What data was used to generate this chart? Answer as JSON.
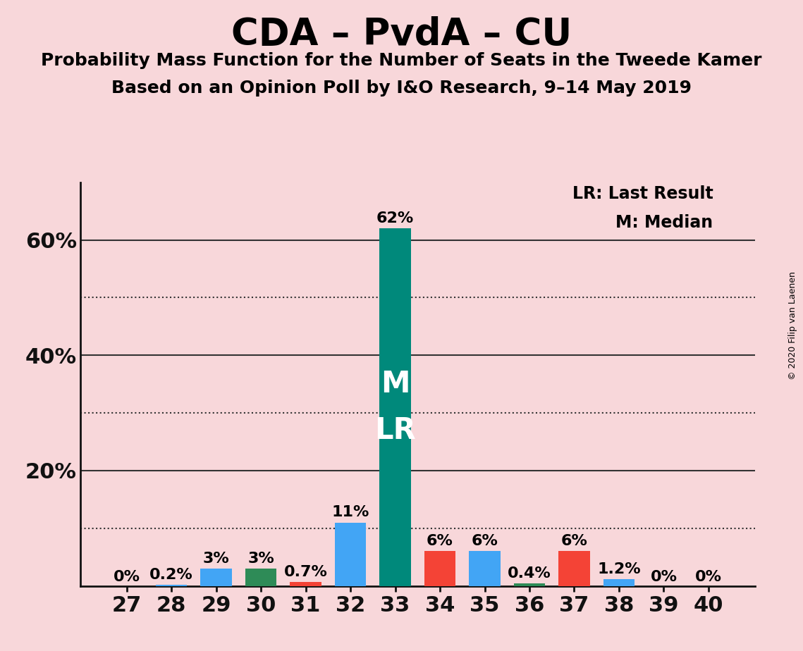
{
  "title": "CDA – PvdA – CU",
  "subtitle1": "Probability Mass Function for the Number of Seats in the Tweede Kamer",
  "subtitle2": "Based on an Opinion Poll by I&O Research, 9–14 May 2019",
  "copyright": "© 2020 Filip van Laenen",
  "background_color": "#f8d7da",
  "seats": [
    27,
    28,
    29,
    30,
    31,
    32,
    33,
    34,
    35,
    36,
    37,
    38,
    39,
    40
  ],
  "values": [
    0.0,
    0.2,
    3.0,
    3.0,
    0.7,
    11.0,
    62.0,
    6.0,
    6.0,
    0.4,
    6.0,
    1.2,
    0.0,
    0.0
  ],
  "labels": [
    "0%",
    "0.2%",
    "3%",
    "3%",
    "0.7%",
    "11%",
    "62%",
    "6%",
    "6%",
    "0.4%",
    "6%",
    "1.2%",
    "0%",
    "0%"
  ],
  "bar_colors": [
    "#f8d7da",
    "#42a5f5",
    "#42a5f5",
    "#2e8b57",
    "#f44336",
    "#42a5f5",
    "#00897b",
    "#f44336",
    "#42a5f5",
    "#2e8b57",
    "#f44336",
    "#42a5f5",
    "#f8d7da",
    "#f8d7da"
  ],
  "bar_inner_label_line1": "M",
  "bar_inner_label_line2": "LR",
  "lr_label": "LR: Last Result",
  "m_label": "M: Median",
  "ylim_max": 70,
  "label_fontsize": 16,
  "tick_fontsize": 22,
  "title_fontsize": 38,
  "subtitle_fontsize": 18,
  "inner_label_fontsize": 30
}
